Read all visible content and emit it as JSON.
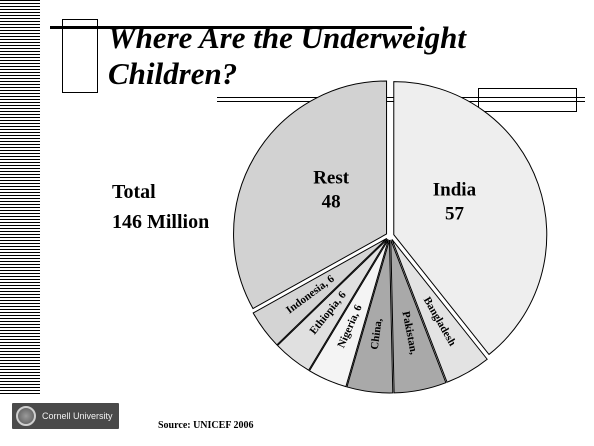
{
  "slide": {
    "title": "Where Are the Underweight\nChildren?",
    "total_text": "Total\n146 Million",
    "source": "Source:  UNICEF 2006",
    "logo_text": "Cornell University"
  },
  "chart_data": {
    "type": "pie",
    "unit": "Million",
    "total": 146,
    "slices": [
      {
        "label": "India",
        "value": 57,
        "display": "India\n57",
        "color": "#eeeeee"
      },
      {
        "label": "Bangladesh",
        "value": 7,
        "display": "Bangladesh",
        "color": "#e3e3e3"
      },
      {
        "label": "Pakistan",
        "value": 8,
        "display": "Pakistan,",
        "color": "#a9a9a9"
      },
      {
        "label": "China",
        "value": 7,
        "display": "China, ",
        "color": "#a9a9a9"
      },
      {
        "label": "Nigeria",
        "value": 6,
        "display": "Nigeria, 6",
        "color": "#f4f4f4"
      },
      {
        "label": "Ethiopia",
        "value": 6,
        "display": "Ethiopia, 6",
        "color": "#e0e0e0"
      },
      {
        "label": "Indonesia",
        "value": 6,
        "display": "Indonesia, 6",
        "color": "#d4d4d4"
      },
      {
        "label": "Rest",
        "value": 48,
        "display": "Rest\n48",
        "color": "#d2d2d2"
      }
    ]
  }
}
